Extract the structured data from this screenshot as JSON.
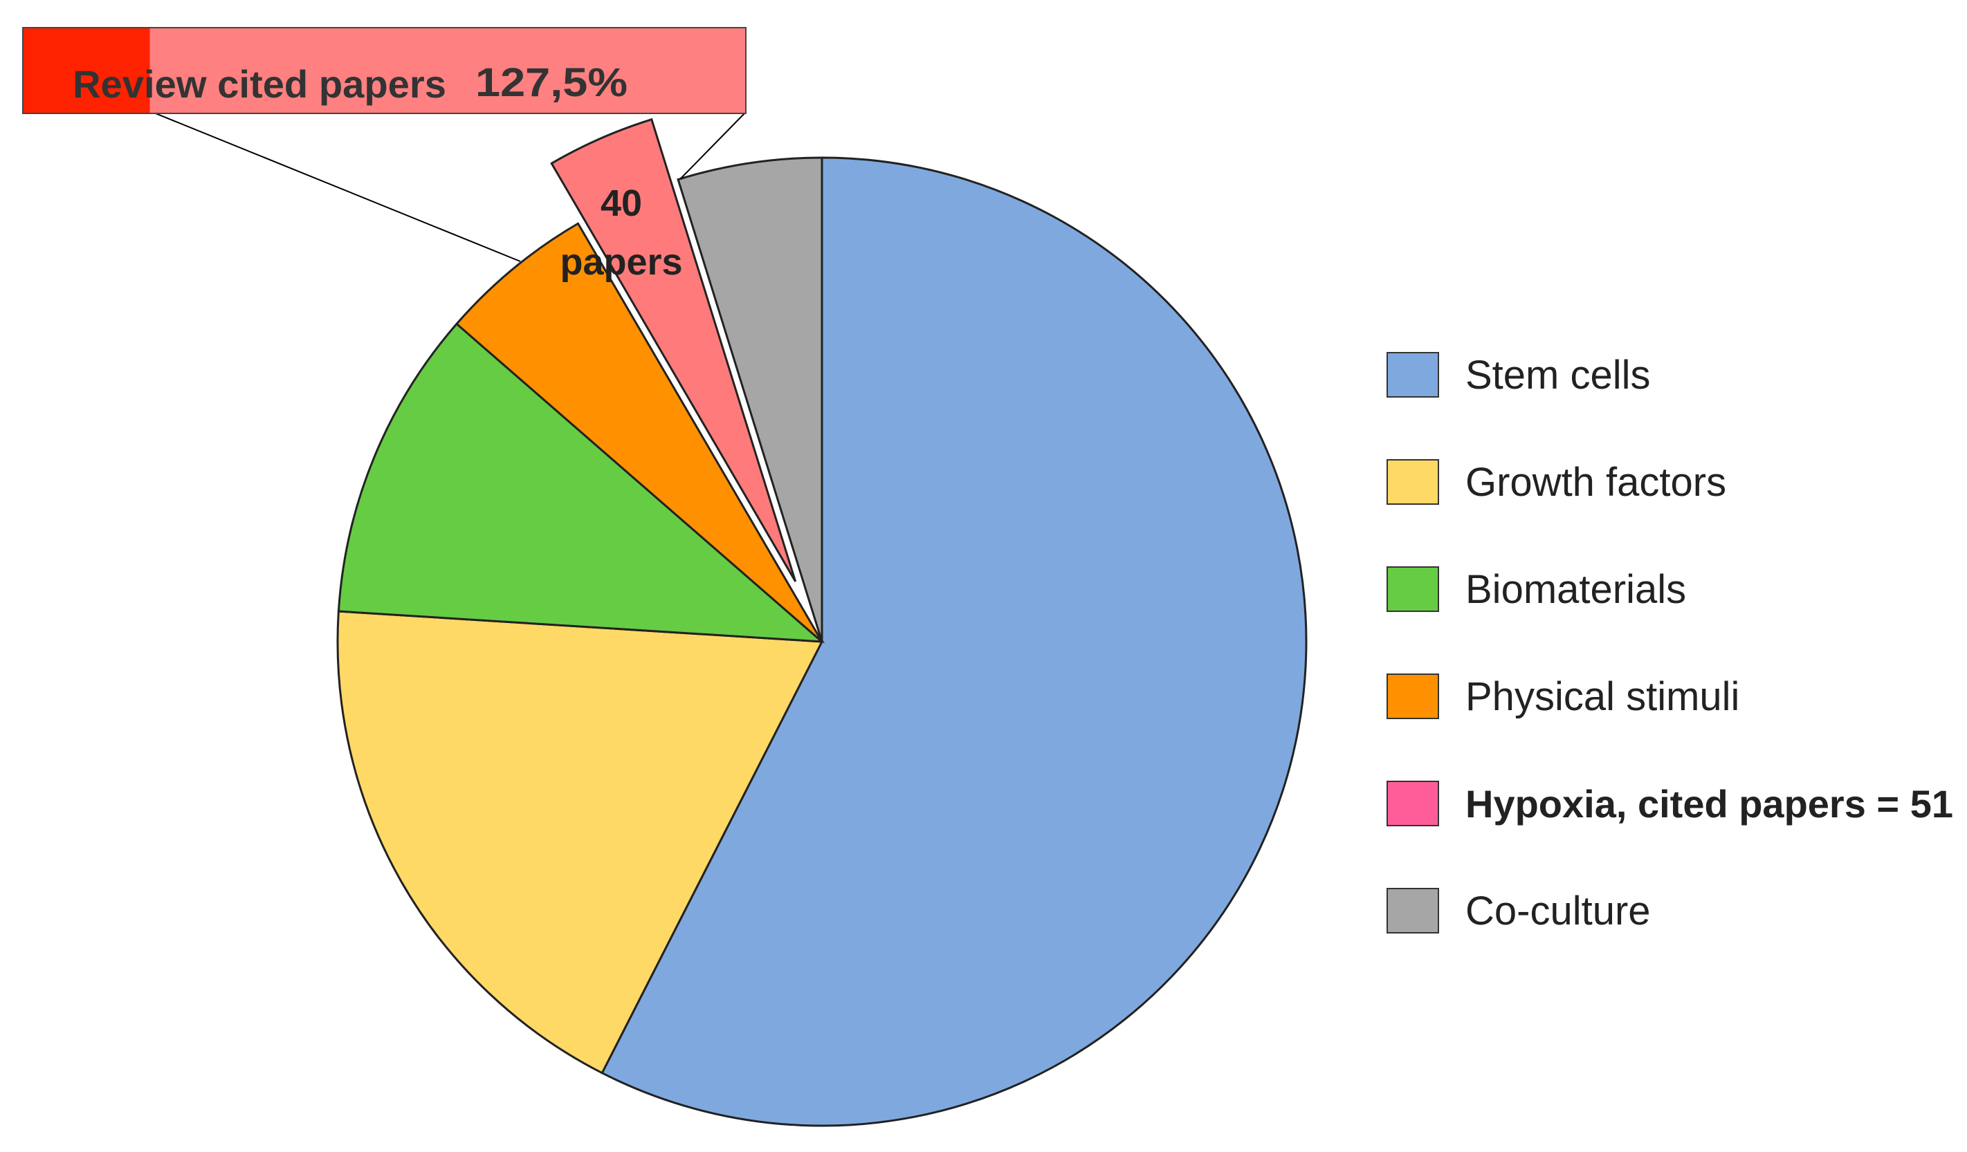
{
  "chart_data": {
    "type": "pie",
    "title": "",
    "slices": [
      {
        "label": "Stem cells",
        "value": 57.5,
        "color": "#7FA9DE"
      },
      {
        "label": "Growth factors",
        "value": 18.5,
        "color": "#FFD966"
      },
      {
        "label": "Biomaterials",
        "value": 10.4,
        "color": "#66CC44"
      },
      {
        "label": "Physical stimuli",
        "value": 5.2,
        "color": "#FF9100"
      },
      {
        "label": "Hypoxia, cited papers = 51",
        "value": 3.6,
        "color": "#FF7B7B",
        "exploded": true,
        "label_color": "#FF5C9A"
      },
      {
        "label": "Co-culture",
        "value": 4.8,
        "color": "#A6A6A6"
      }
    ],
    "legend_position": "right",
    "bold_legend_entry": "Hypoxia, cited papers = 51",
    "slice_label": [
      "40",
      "papers"
    ],
    "callout": {
      "text": "Review cited papers",
      "value_text": "127,5%",
      "fill_ratio": 0.175,
      "fill_color": "#FF2200",
      "box_color": "#FF8080"
    }
  }
}
